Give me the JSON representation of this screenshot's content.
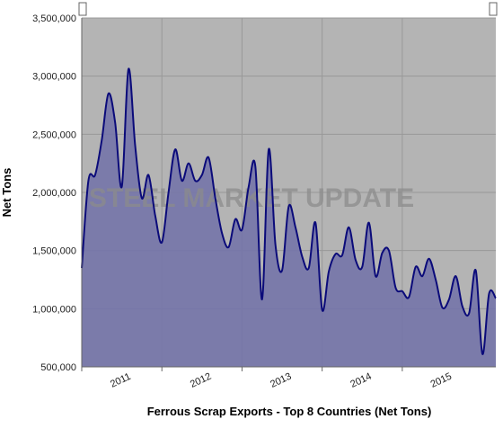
{
  "chart_data": {
    "type": "area",
    "title": "Ferrous Scrap Exports - Top 8 Countries (Net Tons)",
    "y_label": "Net Tons",
    "watermark": "STEEL MARKET UPDATE",
    "x": [
      2011,
      2011.083,
      2011.167,
      2011.25,
      2011.333,
      2011.417,
      2011.5,
      2011.583,
      2011.667,
      2011.75,
      2011.833,
      2011.917,
      2012,
      2012.083,
      2012.167,
      2012.25,
      2012.333,
      2012.417,
      2012.5,
      2012.583,
      2012.667,
      2012.75,
      2012.833,
      2012.917,
      2013,
      2013.083,
      2013.167,
      2013.25,
      2013.333,
      2013.417,
      2013.5,
      2013.583,
      2013.667,
      2013.75,
      2013.833,
      2013.917,
      2014,
      2014.083,
      2014.167,
      2014.25,
      2014.333,
      2014.417,
      2014.5,
      2014.583,
      2014.667,
      2014.75,
      2014.833,
      2014.917,
      2015,
      2015.083,
      2015.167,
      2015.25,
      2015.333,
      2015.417,
      2015.5,
      2015.583,
      2015.667,
      2015.75,
      2015.833,
      2015.917,
      2016,
      2016.083,
      2016.167
    ],
    "series": [
      {
        "name": "Net Tons",
        "color": "#0b0b7a",
        "fill": "#7474a8",
        "values": [
          1350000,
          2100000,
          2150000,
          2450000,
          2850000,
          2600000,
          2050000,
          3060000,
          2400000,
          1950000,
          2150000,
          1800000,
          1570000,
          2000000,
          2370000,
          2100000,
          2250000,
          2100000,
          2150000,
          2300000,
          1950000,
          1650000,
          1530000,
          1770000,
          1680000,
          2050000,
          2220000,
          1080000,
          2370000,
          1550000,
          1330000,
          1880000,
          1700000,
          1450000,
          1350000,
          1740000,
          990000,
          1320000,
          1470000,
          1460000,
          1700000,
          1420000,
          1360000,
          1740000,
          1280000,
          1480000,
          1500000,
          1180000,
          1150000,
          1100000,
          1360000,
          1280000,
          1430000,
          1250000,
          1010000,
          1080000,
          1280000,
          1020000,
          960000,
          1330000,
          610000,
          1130000,
          1090000
        ]
      }
    ],
    "xlim": [
      2011,
      2016.167
    ],
    "xticks": [
      2011,
      2012,
      2013,
      2014,
      2015
    ],
    "ylim": [
      500000,
      3500000
    ],
    "yticks": [
      {
        "value": 500000,
        "label": "500,000"
      },
      {
        "value": 1000000,
        "label": "1,000,000"
      },
      {
        "value": 1500000,
        "label": "1,500,000"
      },
      {
        "value": 2000000,
        "label": "2,000,000"
      },
      {
        "value": 2500000,
        "label": "2,500,000"
      },
      {
        "value": 3000000,
        "label": "3,000,000"
      },
      {
        "value": 3500000,
        "label": "3,500,000"
      }
    ],
    "grid": true,
    "background": "#b4b4b4"
  }
}
